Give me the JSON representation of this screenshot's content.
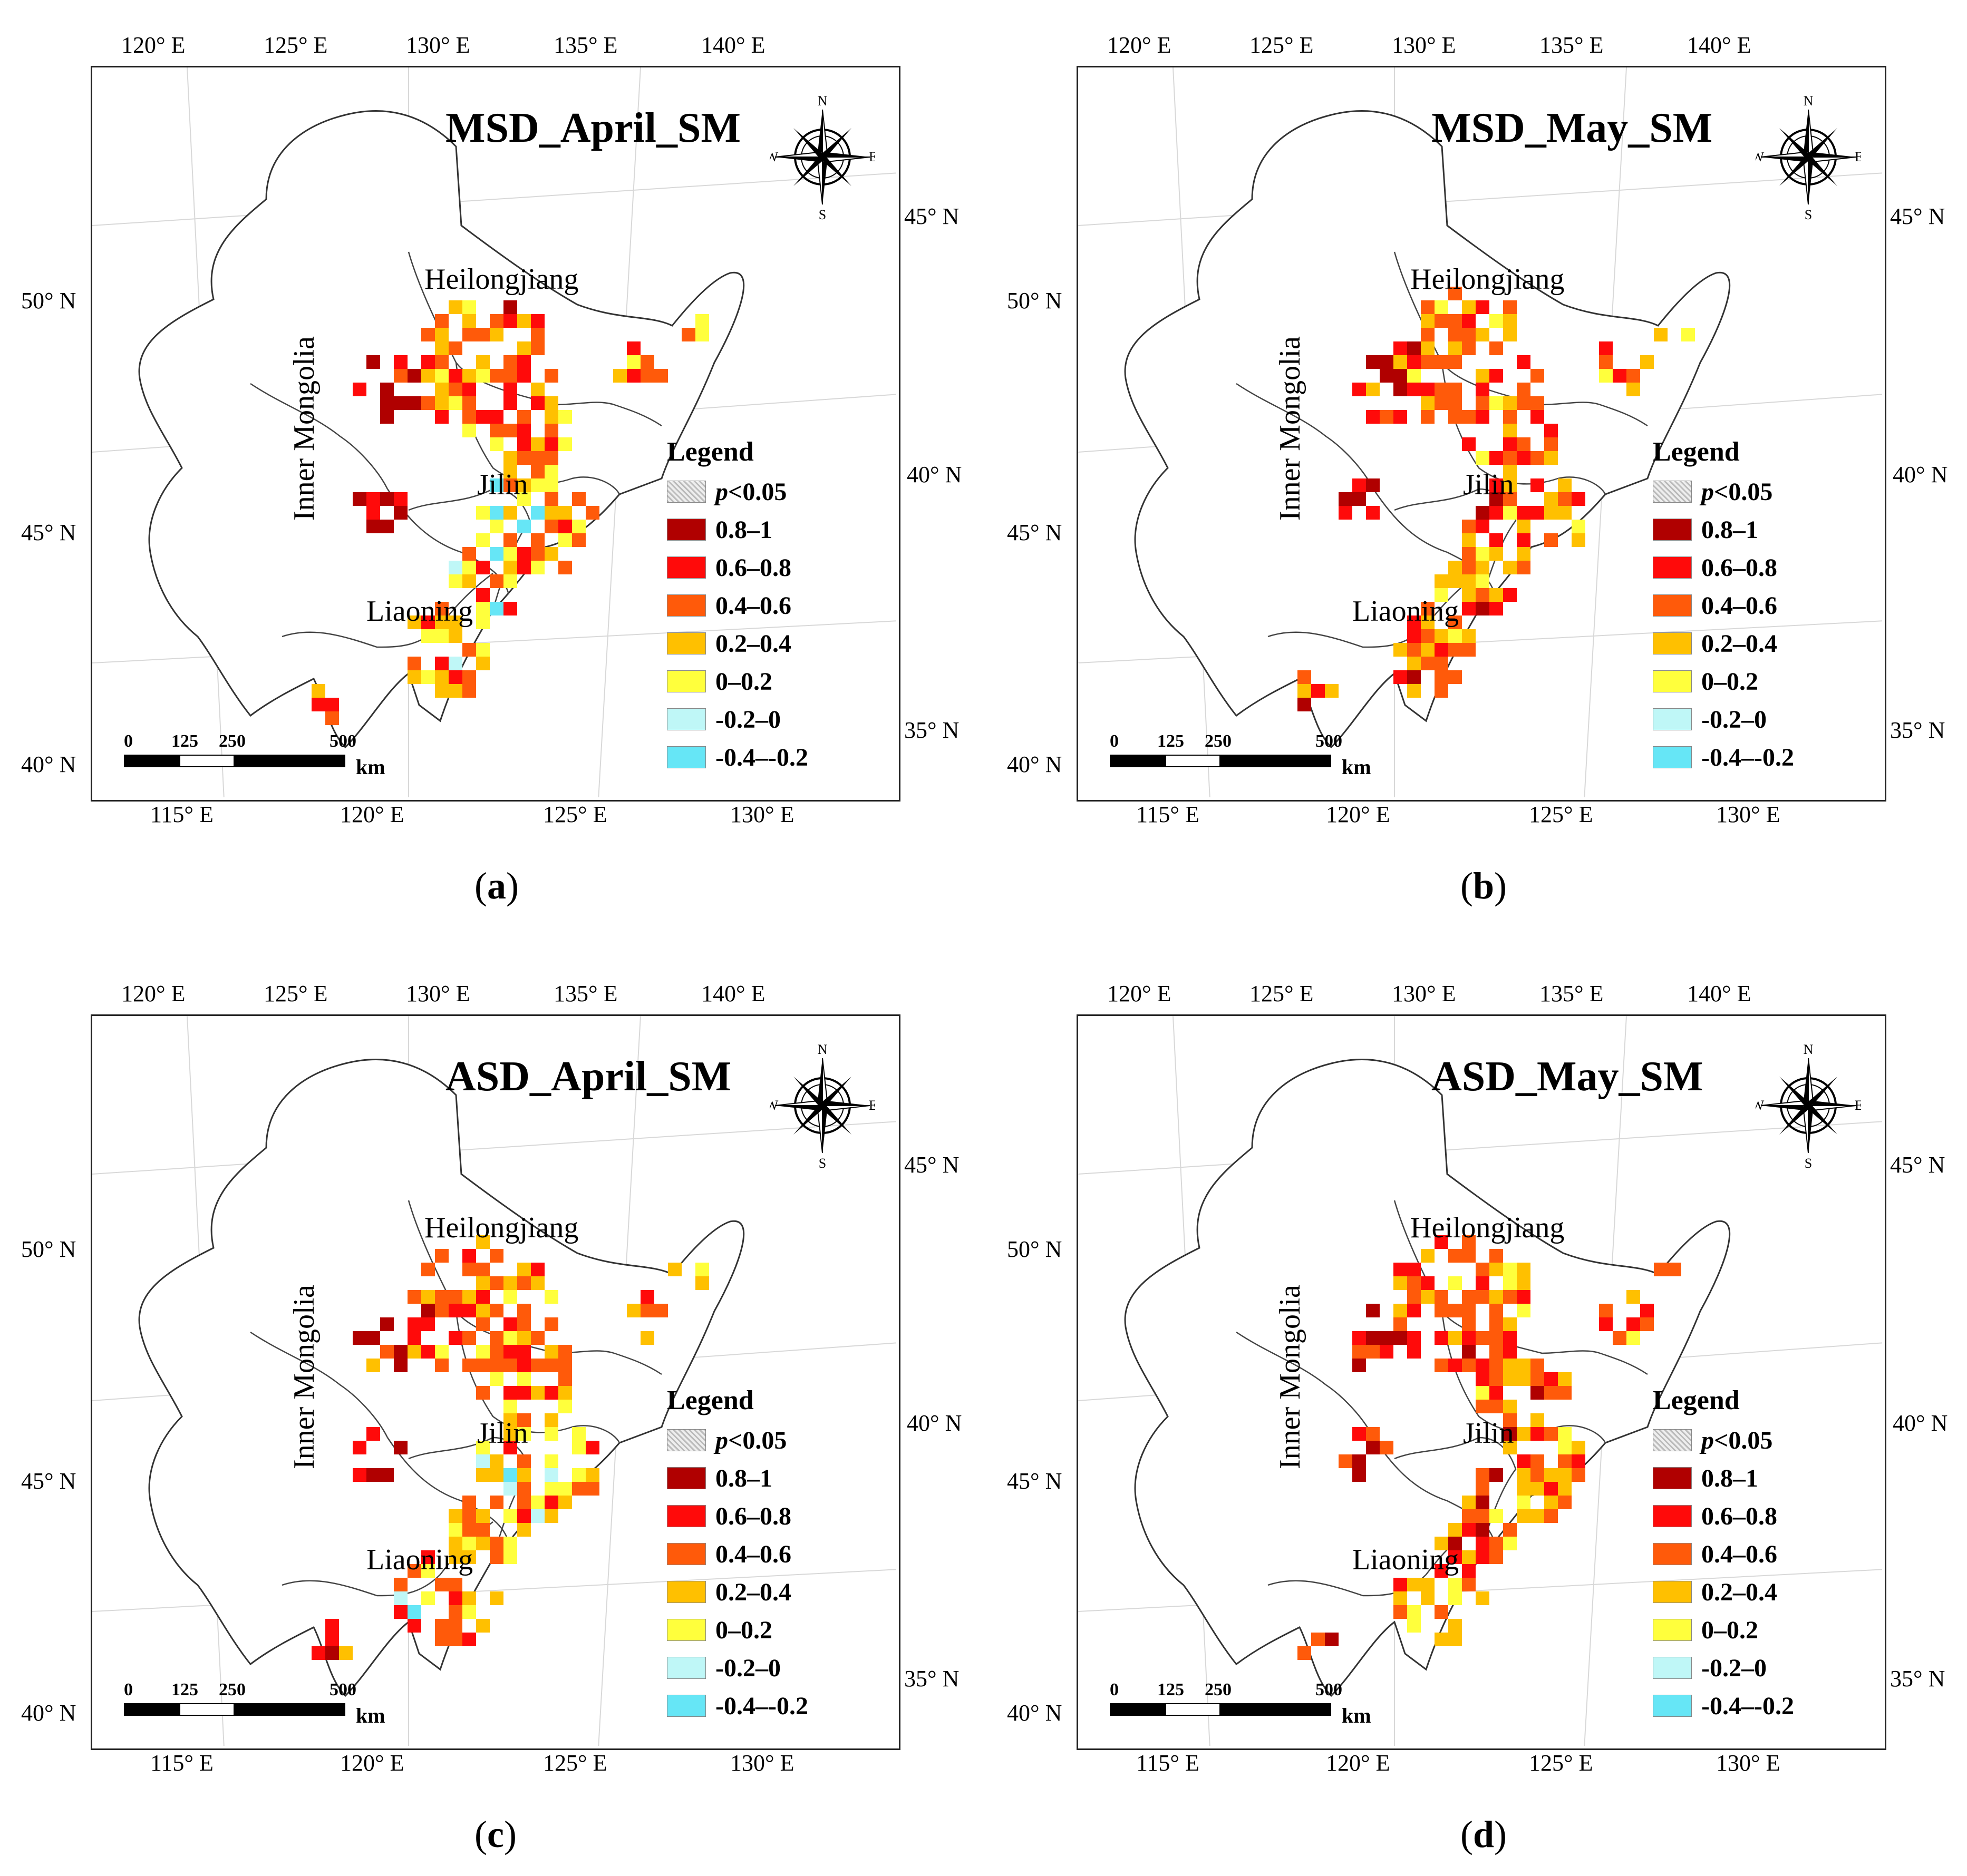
{
  "legend": {
    "title": "Legend",
    "sig_prefix": "p",
    "sig_suffix": "<0.05",
    "classes": [
      {
        "label": "0.8–1",
        "color": "#b00000"
      },
      {
        "label": "0.6–0.8",
        "color": "#ff0a0a"
      },
      {
        "label": "0.4–0.6",
        "color": "#ff5a0a"
      },
      {
        "label": "0.2–0.4",
        "color": "#ffc000"
      },
      {
        "label": "0–0.2",
        "color": "#ffff3c"
      },
      {
        "label": "-0.2–0",
        "color": "#bff7f7"
      },
      {
        "label": "-0.4–-0.2",
        "color": "#66e6f6"
      }
    ]
  },
  "scalebar": {
    "labels": [
      "0",
      "125",
      "250",
      "500"
    ],
    "unit": "km"
  },
  "compass": {
    "n": "N",
    "s": "S",
    "e": "E",
    "w": "W"
  },
  "axes": {
    "top": [
      "120° E",
      "125° E",
      "130° E",
      "135° E",
      "140° E"
    ],
    "bottom": [
      "115° E",
      "120° E",
      "125° E",
      "130° E"
    ],
    "left": [
      "50° N",
      "45° N",
      "40° N"
    ],
    "right": [
      "45° N",
      "40° N",
      "35° N"
    ]
  },
  "provinces": {
    "heilongjiang": "Heilongjiang",
    "jilin": "Jilin",
    "liaoning": "Liaoning",
    "inner_mongolia": "Inner Mongolia"
  },
  "panels": [
    {
      "title": "MSD_April_SM",
      "caption": "a"
    },
    {
      "title": "MSD_May_SM",
      "caption": "b"
    },
    {
      "title": "ASD_April_SM",
      "caption": "c"
    },
    {
      "title": "ASD_May_SM",
      "caption": "d"
    }
  ]
}
